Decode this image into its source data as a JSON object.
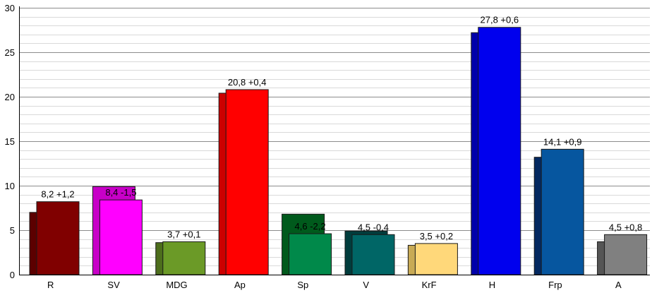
{
  "chart_data": {
    "type": "bar",
    "title": "",
    "xlabel": "",
    "ylabel": "",
    "ylim": [
      0,
      30
    ],
    "yticks": [
      "0",
      "5",
      "10",
      "15",
      "20",
      "25",
      "30"
    ],
    "grid": "horizontal",
    "categories": [
      "R",
      "SV",
      "MDG",
      "Ap",
      "Sp",
      "V",
      "KrF",
      "H",
      "Frp",
      "A"
    ],
    "series": [
      {
        "values": [
          7.0,
          9.9,
          3.6,
          20.4,
          6.8,
          4.9,
          3.3,
          27.2,
          13.2,
          3.7
        ]
      },
      {
        "values": [
          8.2,
          8.4,
          3.7,
          20.8,
          4.6,
          4.5,
          3.5,
          27.8,
          14.1,
          4.5
        ]
      }
    ],
    "data_labels": [
      "8,2 +1,2",
      "8,4 -1,5",
      "3,7 +0,1",
      "20,8 +0,4",
      "4,6 -2,2",
      "4,5 -0,4",
      "3,5 +0,2",
      "27,8 +0,6",
      "14,1 +0,9",
      "4,5 +0,8"
    ],
    "colors": {
      "current": [
        "#800000",
        "#FF00FF",
        "#6B9A27",
        "#FF0000",
        "#00894A",
        "#006666",
        "#FFD87A",
        "#0000EE",
        "#06569F",
        "#808080"
      ],
      "previous": [
        "#5C0000",
        "#C800C8",
        "#4D6E1C",
        "#CC0000",
        "#005A1C",
        "#003C3C",
        "#C8AA55",
        "#0000AA",
        "#032860",
        "#555555"
      ]
    }
  }
}
